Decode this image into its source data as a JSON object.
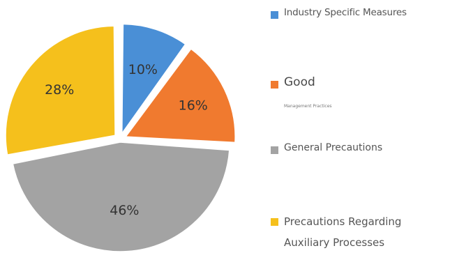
{
  "chart_data": {
    "type": "pie",
    "title": "",
    "legend_position": "right",
    "slices": [
      {
        "label": "Industry Specific Measures",
        "value": 10,
        "display": "10%",
        "color": "#4a8fd6"
      },
      {
        "label": "Good",
        "sublabel": "Management Practices",
        "value": 16,
        "display": "16%",
        "color": "#f07a2f"
      },
      {
        "label": "General Precautions",
        "value": 46,
        "display": "46%",
        "color": "#a3a3a3"
      },
      {
        "label": "Precautions Regarding Auxiliary Processes",
        "value": 28,
        "display": "28%",
        "color": "#f5c01c"
      }
    ]
  },
  "legend": {
    "items": [
      {
        "label": "Industry Specific Measures",
        "color": "#4a8fd6"
      },
      {
        "label": "Good",
        "sub": "Management Practices",
        "color": "#f07a2f"
      },
      {
        "label": "General Precautions",
        "color": "#a3a3a3"
      },
      {
        "line1": "Precautions Regarding",
        "line2": "Auxiliary Processes",
        "color": "#f5c01c"
      }
    ]
  }
}
